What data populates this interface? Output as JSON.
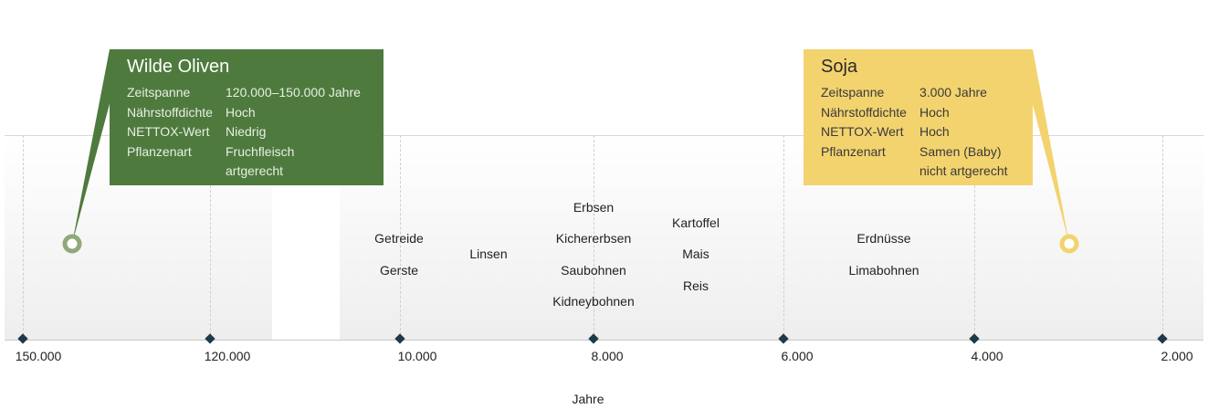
{
  "chart_data": {
    "type": "timeline",
    "xlabel": "Jahre",
    "ticks": [
      {
        "label": "150.000",
        "value": 150000
      },
      {
        "label": "120.000",
        "value": 120000
      },
      {
        "label": "10.000",
        "value": 10000
      },
      {
        "label": "8.000",
        "value": 8000
      },
      {
        "label": "6.000",
        "value": 6000
      },
      {
        "label": "4.000",
        "value": 4000
      },
      {
        "label": "2.000",
        "value": 2000
      }
    ],
    "crops": [
      {
        "name": "Getreide",
        "years": 10000
      },
      {
        "name": "Gerste",
        "years": 10000
      },
      {
        "name": "Linsen",
        "years": 9000
      },
      {
        "name": "Erbsen",
        "years": 8000
      },
      {
        "name": "Kichererbsen",
        "years": 8000
      },
      {
        "name": "Saubohnen",
        "years": 8000
      },
      {
        "name": "Kidneybohnen",
        "years": 8000
      },
      {
        "name": "Kartoffel",
        "years": 7000
      },
      {
        "name": "Mais",
        "years": 7000
      },
      {
        "name": "Reis",
        "years": 7000
      },
      {
        "name": "Erdnüsse",
        "years": 5000
      },
      {
        "name": "Limabohnen",
        "years": 5000
      }
    ],
    "highlights": [
      {
        "title": "Wilde Oliven",
        "years": 145000,
        "color": "#4e7a3e",
        "marker_color": "#8fa97c",
        "rows": [
          {
            "key": "Zeitspanne",
            "value": "120.000–150.000 Jahre"
          },
          {
            "key": "Nährstoffdichte",
            "value": "Hoch"
          },
          {
            "key": "NETTOX-Wert",
            "value": "Niedrig"
          },
          {
            "key": "Pflanzenart",
            "value": "Fruchfleisch"
          },
          {
            "key": "",
            "value": "artgerecht"
          }
        ]
      },
      {
        "title": "Soja",
        "years": 3000,
        "color": "#f3d36e",
        "marker_color": "#f3d36e",
        "rows": [
          {
            "key": "Zeitspanne",
            "value": "3.000 Jahre"
          },
          {
            "key": "Nährstoffdichte",
            "value": "Hoch"
          },
          {
            "key": "NETTOX-Wert",
            "value": "Hoch"
          },
          {
            "key": "Pflanzenart",
            "value": "Samen (Baby)"
          },
          {
            "key": "",
            "value": "nicht artgerecht"
          }
        ]
      }
    ]
  }
}
